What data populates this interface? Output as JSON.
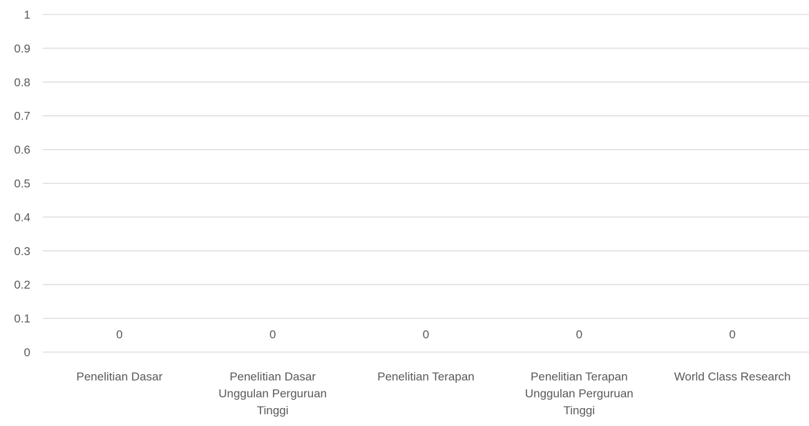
{
  "chart_data": {
    "type": "bar",
    "title": "",
    "xlabel": "",
    "ylabel": "",
    "ylim": [
      0,
      1
    ],
    "ytick_step": 0.1,
    "y_ticks": [
      "0",
      "0.1",
      "0.2",
      "0.3",
      "0.4",
      "0.5",
      "0.6",
      "0.7",
      "0.8",
      "0.9",
      "1"
    ],
    "grid": true,
    "legend": "none",
    "categories": [
      [
        "Penelitian Dasar"
      ],
      [
        "Penelitian Dasar",
        "Unggulan Perguruan",
        "Tinggi"
      ],
      [
        "Penelitian Terapan"
      ],
      [
        "Penelitian Terapan",
        "Unggulan Perguruan",
        "Tinggi"
      ],
      [
        "World Class Research"
      ]
    ],
    "values": [
      0,
      0,
      0,
      0,
      0
    ],
    "data_labels": [
      "0",
      "0",
      "0",
      "0",
      "0"
    ],
    "colors": {
      "grid": "#d9d9d9",
      "text": "#595959",
      "bar": "#4472c4"
    }
  }
}
